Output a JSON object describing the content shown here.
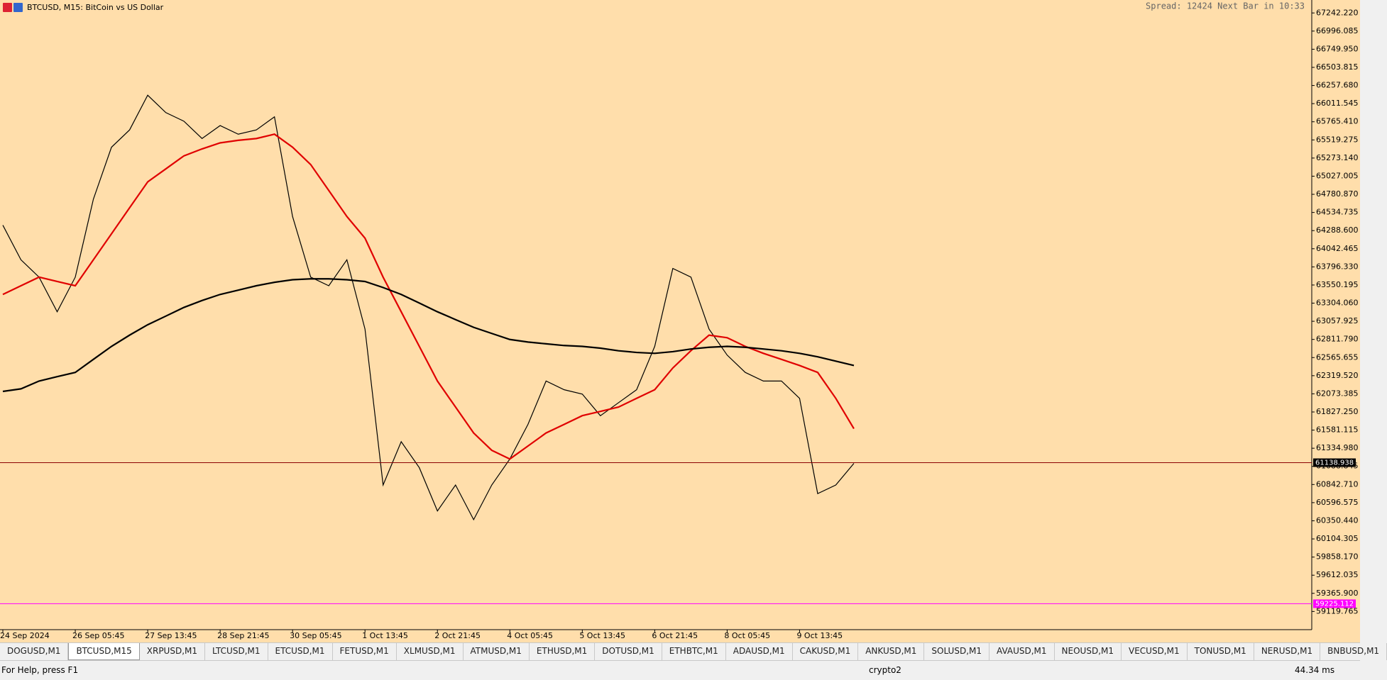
{
  "window": {
    "title": "BTCUSD, M15:  BitCoin vs US Dollar",
    "info": "Spread: 12424 Next Bar in 10:33"
  },
  "chart_data": {
    "type": "line",
    "categories": [
      "24 Sep 2024",
      null,
      null,
      null,
      "26 Sep 05:45",
      null,
      null,
      null,
      "27 Sep 13:45",
      null,
      null,
      null,
      "28 Sep 21:45",
      null,
      null,
      null,
      "30 Sep 05:45",
      null,
      null,
      null,
      "1 Oct 13:45",
      null,
      null,
      null,
      "2 Oct 21:45",
      null,
      null,
      null,
      "4 Oct 05:45",
      null,
      null,
      null,
      "5 Oct 13:45",
      null,
      null,
      null,
      "6 Oct 21:45",
      null,
      null,
      null,
      "8 Oct 05:45",
      null,
      null,
      null,
      "9 Oct 13:45",
      null,
      null,
      null
    ],
    "series": [
      {
        "color": "#000000",
        "values": [
          64362,
          63892,
          63657,
          63187,
          63657,
          64715,
          65420,
          65655,
          66126,
          65890,
          65773,
          65538,
          65714,
          65597,
          65655,
          65832,
          64480,
          63657,
          63540,
          63892,
          62952,
          60836,
          61424,
          61071,
          60484,
          60836,
          60366,
          60836,
          61189,
          61659,
          62247,
          62129,
          62070,
          61776,
          61953,
          62129,
          62717,
          63775,
          63657,
          62952,
          62599,
          62364,
          62247,
          62247,
          62012,
          60719,
          60836,
          61130
        ]
      },
      {
        "color": "#e00000",
        "values": [
          63422,
          63540,
          63657,
          63598,
          63540,
          63892,
          64245,
          64598,
          64950,
          65126,
          65303,
          65397,
          65479,
          65514,
          65538,
          65597,
          65420,
          65185,
          64833,
          64480,
          64186,
          63657,
          63187,
          62717,
          62247,
          61894,
          61542,
          61307,
          61189,
          61365,
          61542,
          61659,
          61777,
          61835,
          61894,
          62012,
          62129,
          62424,
          62659,
          62870,
          62835,
          62717,
          62623,
          62541,
          62458,
          62364,
          62012,
          61600
        ]
      },
      {
        "color": "#000000",
        "values": [
          62106,
          62141,
          62247,
          62306,
          62364,
          62541,
          62717,
          62870,
          63011,
          63128,
          63246,
          63340,
          63422,
          63481,
          63540,
          63587,
          63622,
          63634,
          63634,
          63622,
          63598,
          63516,
          63422,
          63305,
          63187,
          63081,
          62976,
          62893,
          62811,
          62776,
          62752,
          62729,
          62717,
          62693,
          62658,
          62635,
          62623,
          62646,
          62682,
          62705,
          62717,
          62705,
          62682,
          62658,
          62623,
          62576,
          62517,
          62458
        ]
      }
    ],
    "ylim": [
      58873,
      67418
    ],
    "yticks": [
      {
        "value": 67242.22,
        "label": "67242.220"
      },
      {
        "value": 66996.085,
        "label": "66996.085"
      },
      {
        "value": 66749.95,
        "label": "66749.950"
      },
      {
        "value": 66503.815,
        "label": "66503.815"
      },
      {
        "value": 66257.68,
        "label": "66257.680"
      },
      {
        "value": 66011.545,
        "label": "66011.545"
      },
      {
        "value": 65765.41,
        "label": "65765.410"
      },
      {
        "value": 65519.275,
        "label": "65519.275"
      },
      {
        "value": 65273.14,
        "label": "65273.140"
      },
      {
        "value": 65027.005,
        "label": "65027.005"
      },
      {
        "value": 64780.87,
        "label": "64780.870"
      },
      {
        "value": 64534.735,
        "label": "64534.735"
      },
      {
        "value": 64288.6,
        "label": "64288.600"
      },
      {
        "value": 64042.465,
        "label": "64042.465"
      },
      {
        "value": 63796.33,
        "label": "63796.330"
      },
      {
        "value": 63550.195,
        "label": "63550.195"
      },
      {
        "value": 63304.06,
        "label": "63304.060"
      },
      {
        "value": 63057.925,
        "label": "63057.925"
      },
      {
        "value": 62811.79,
        "label": "62811.790"
      },
      {
        "value": 62565.655,
        "label": "62565.655"
      },
      {
        "value": 62319.52,
        "label": "62319.520"
      },
      {
        "value": 62073.385,
        "label": "62073.385"
      },
      {
        "value": 61827.25,
        "label": "61827.250"
      },
      {
        "value": 61581.115,
        "label": "61581.115"
      },
      {
        "value": 61334.98,
        "label": "61334.980"
      },
      {
        "value": 61088.845,
        "label": "61088.845"
      },
      {
        "value": 60842.71,
        "label": "60842.710"
      },
      {
        "value": 60596.575,
        "label": "60596.575"
      },
      {
        "value": 60350.44,
        "label": "60350.440"
      },
      {
        "value": 60104.305,
        "label": "60104.305"
      },
      {
        "value": 59858.17,
        "label": "59858.170"
      },
      {
        "value": 59612.035,
        "label": "59612.035"
      },
      {
        "value": 59365.9,
        "label": "59365.900"
      },
      {
        "value": 59119.765,
        "label": "59119.765"
      }
    ],
    "price_lines": [
      {
        "value": 61138.938,
        "color": "#8b0000"
      },
      {
        "value": 59225.112,
        "color": "#ff00ff"
      }
    ]
  },
  "tabs": [
    "DOGUSD,M1",
    "BTCUSD,M15",
    "XRPUSD,M1",
    "LTCUSD,M1",
    "ETCUSD,M1",
    "FETUSD,M1",
    "XLMUSD,M1",
    "ATMUSD,M1",
    "ETHUSD,M1",
    "DOTUSD,M1",
    "ETHBTC,M1",
    "ADAUSD,M1",
    "CAKUSD,M1",
    "ANKUSD,M1",
    "SOLUSD,M1",
    "AVAUSD,M1",
    "NEOUSD,M1",
    "VECUSD,M1",
    "TONUSD,M1",
    "NERUSD,M1",
    "BNBUSD,M1"
  ],
  "active_tab": 1,
  "status": {
    "help": "For Help, press F1",
    "profile": "crypto2",
    "ping": "44.34 ms"
  }
}
